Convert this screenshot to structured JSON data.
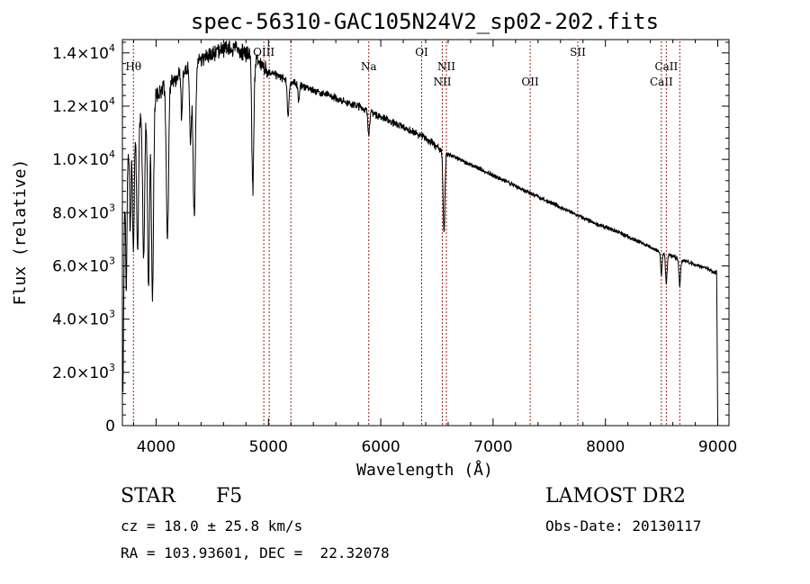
{
  "chart_data": {
    "type": "line",
    "title": "spec-56310-GAC105N24V2_sp02-202.fits",
    "xlabel": "Wavelength (Å)",
    "ylabel": "Flux (relative)",
    "xlim": [
      3700,
      9100
    ],
    "ylim": [
      0,
      14500
    ],
    "x_ticks": [
      {
        "value": 4000,
        "label": "4000"
      },
      {
        "value": 5000,
        "label": "5000"
      },
      {
        "value": 6000,
        "label": "6000"
      },
      {
        "value": 7000,
        "label": "7000"
      },
      {
        "value": 8000,
        "label": "8000"
      },
      {
        "value": 9000,
        "label": "9000"
      }
    ],
    "y_ticks": [
      {
        "value": 0,
        "mantissa": "0",
        "exponent": ""
      },
      {
        "value": 2000,
        "mantissa": "2.0×10",
        "exponent": "3"
      },
      {
        "value": 4000,
        "mantissa": "4.0×10",
        "exponent": "3"
      },
      {
        "value": 6000,
        "mantissa": "6.0×10",
        "exponent": "3"
      },
      {
        "value": 8000,
        "mantissa": "8.0×10",
        "exponent": "3"
      },
      {
        "value": 10000,
        "mantissa": "1.0×10",
        "exponent": "4"
      },
      {
        "value": 12000,
        "mantissa": "1.2×10",
        "exponent": "4"
      },
      {
        "value": 14000,
        "mantissa": "1.4×10",
        "exponent": "4"
      }
    ],
    "spectral_lines": [
      {
        "label": "Hθ",
        "wavelength": 3798,
        "row": "upper-left"
      },
      {
        "label": "OIII",
        "wavelength": 4959,
        "row": "top"
      },
      {
        "label": "OIII",
        "wavelength": 5007,
        "row": "none"
      },
      {
        "label": "",
        "wavelength": 5200,
        "row": "none"
      },
      {
        "label": "Na",
        "wavelength": 5893,
        "row": "mid"
      },
      {
        "label": "OI",
        "wavelength": 6364,
        "row": "top"
      },
      {
        "label": "NII",
        "wavelength": 6548,
        "row": "low"
      },
      {
        "label": "NII",
        "wavelength": 6584,
        "row": "mid"
      },
      {
        "label": "OII",
        "wavelength": 7330,
        "row": "low"
      },
      {
        "label": "SII",
        "wavelength": 7754,
        "row": "top"
      },
      {
        "label": "CaII",
        "wavelength": 8498,
        "row": "low"
      },
      {
        "label": "CaII",
        "wavelength": 8542,
        "row": "mid"
      },
      {
        "label": "",
        "wavelength": 8662,
        "row": "none"
      }
    ],
    "continuum": [
      [
        3700,
        7000
      ],
      [
        3760,
        10500
      ],
      [
        3850,
        11500
      ],
      [
        3950,
        12200
      ],
      [
        4100,
        12800
      ],
      [
        4250,
        13300
      ],
      [
        4400,
        13700
      ],
      [
        4550,
        14100
      ],
      [
        4700,
        14200
      ],
      [
        4850,
        13900
      ],
      [
        5000,
        13300
      ],
      [
        5200,
        12900
      ],
      [
        5400,
        12600
      ],
      [
        5600,
        12300
      ],
      [
        5800,
        12000
      ],
      [
        6000,
        11600
      ],
      [
        6200,
        11200
      ],
      [
        6400,
        10800
      ],
      [
        6550,
        10300
      ],
      [
        6700,
        10000
      ],
      [
        6900,
        9600
      ],
      [
        7100,
        9200
      ],
      [
        7300,
        8800
      ],
      [
        7500,
        8400
      ],
      [
        7700,
        8000
      ],
      [
        7900,
        7600
      ],
      [
        8100,
        7300
      ],
      [
        8300,
        6900
      ],
      [
        8500,
        6500
      ],
      [
        8700,
        6200
      ],
      [
        8900,
        5900
      ],
      [
        9000,
        5700
      ]
    ],
    "absorption_features": [
      {
        "center": 3705,
        "depth": 5800,
        "width": 6
      },
      {
        "center": 3735,
        "depth": 4000,
        "width": 5
      },
      {
        "center": 3770,
        "depth": 3500,
        "width": 6
      },
      {
        "center": 3798,
        "depth": 4500,
        "width": 7
      },
      {
        "center": 3835,
        "depth": 4800,
        "width": 8
      },
      {
        "center": 3889,
        "depth": 5500,
        "width": 9
      },
      {
        "center": 3933,
        "depth": 6900,
        "width": 9
      },
      {
        "center": 3968,
        "depth": 7500,
        "width": 9
      },
      {
        "center": 4101,
        "depth": 5800,
        "width": 10
      },
      {
        "center": 4227,
        "depth": 1500,
        "width": 6
      },
      {
        "center": 4307,
        "depth": 2800,
        "width": 8
      },
      {
        "center": 4340,
        "depth": 5800,
        "width": 10
      },
      {
        "center": 4861,
        "depth": 5000,
        "width": 9
      },
      {
        "center": 5175,
        "depth": 1300,
        "width": 8
      },
      {
        "center": 5270,
        "depth": 600,
        "width": 6
      },
      {
        "center": 5893,
        "depth": 800,
        "width": 8
      },
      {
        "center": 6563,
        "depth": 3000,
        "width": 8
      },
      {
        "center": 8498,
        "depth": 900,
        "width": 6
      },
      {
        "center": 8542,
        "depth": 1100,
        "width": 7
      },
      {
        "center": 8662,
        "depth": 1000,
        "width": 7
      }
    ]
  },
  "info": {
    "object_class": "STAR",
    "subclass": "F5",
    "survey": "LAMOST DR2",
    "cz": "cz = 18.0 ± 25.8 km/s",
    "obs_date": "Obs-Date: 20130117",
    "coords": "RA = 103.93601, DEC =  22.32078"
  }
}
